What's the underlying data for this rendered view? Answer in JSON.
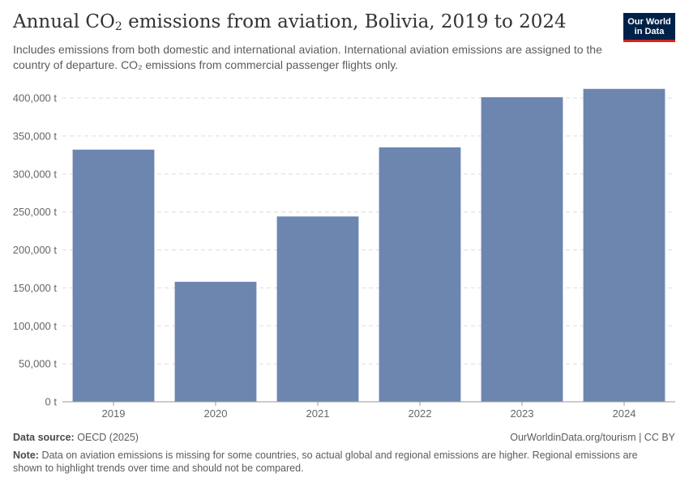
{
  "header": {
    "title_prefix": "Annual CO",
    "title_sub": "2",
    "title_suffix": " emissions from aviation, Bolivia, 2019 to 2024",
    "subtitle": "Includes emissions from both domestic and international aviation. International aviation emissions are assigned to the country of departure. CO₂ emissions from commercial passenger flights only."
  },
  "logo": {
    "line1": "Our World",
    "line2": "in Data"
  },
  "footer": {
    "source_label": "Data source:",
    "source_text": "OECD (2025)",
    "license": "OurWorldinData.org/tourism | CC BY",
    "note_label": "Note:",
    "note_text": "Data on aviation emissions is missing for some countries, so actual global and regional emissions are higher. Regional emissions are shown to highlight trends over time and should not be compared."
  },
  "colors": {
    "bar": "#6d86b0",
    "grid": "#dddddd",
    "axis": "#999999",
    "text": "#666666"
  },
  "chart_data": {
    "type": "bar",
    "title": "Annual CO₂ emissions from aviation, Bolivia, 2019 to 2024",
    "xlabel": "",
    "ylabel": "",
    "categories": [
      "2019",
      "2020",
      "2021",
      "2022",
      "2023",
      "2024"
    ],
    "values": [
      332000,
      158000,
      244000,
      335000,
      401000,
      412000
    ],
    "ylim": [
      0,
      400000
    ],
    "yticks": [
      0,
      50000,
      100000,
      150000,
      200000,
      250000,
      300000,
      350000,
      400000
    ],
    "ytick_labels": [
      "0 t",
      "50,000 t",
      "100,000 t",
      "150,000 t",
      "200,000 t",
      "250,000 t",
      "300,000 t",
      "350,000 t",
      "400,000 t"
    ],
    "grid": true
  }
}
